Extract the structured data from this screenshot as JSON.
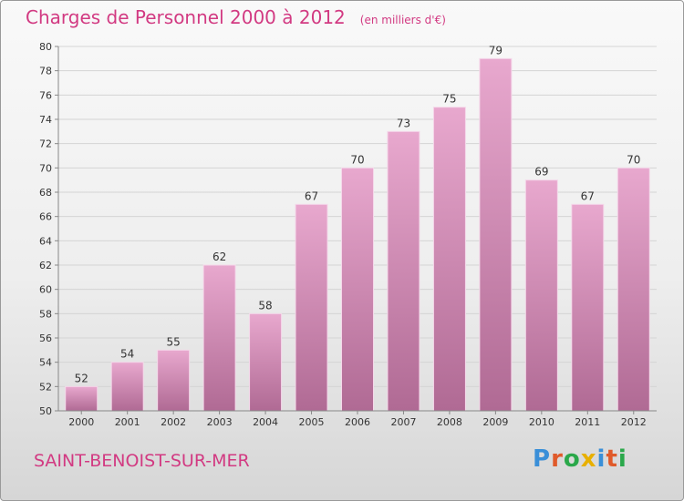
{
  "header": {
    "title": "Charges de Personnel 2000 à 2012",
    "subtitle": "(en milliers d'€)"
  },
  "footer": {
    "city": "SAINT-BENOIST-SUR-MER",
    "logo": "Proxiti"
  },
  "colors": {
    "title": "#d23a82",
    "bar_top": "#e8a8ce",
    "bar_bottom": "#b06a94",
    "logo_letters": [
      "#3a8fd8",
      "#e05a2a",
      "#2aa84a",
      "#e8b000",
      "#3a8fd8",
      "#e05a2a",
      "#2aa84a"
    ]
  },
  "chart_data": {
    "type": "bar",
    "title": "Charges de Personnel 2000 à 2012",
    "subtitle": "(en milliers d'€)",
    "categories": [
      "2000",
      "2001",
      "2002",
      "2003",
      "2004",
      "2005",
      "2006",
      "2007",
      "2008",
      "2009",
      "2010",
      "2011",
      "2012"
    ],
    "values": [
      52,
      54,
      55,
      62,
      58,
      67,
      70,
      73,
      75,
      79,
      69,
      67,
      70
    ],
    "ylim": [
      50,
      80
    ],
    "yticks": [
      50,
      52,
      54,
      56,
      58,
      60,
      62,
      64,
      66,
      68,
      70,
      72,
      74,
      76,
      78,
      80
    ],
    "grid": true,
    "data_labels": true
  }
}
